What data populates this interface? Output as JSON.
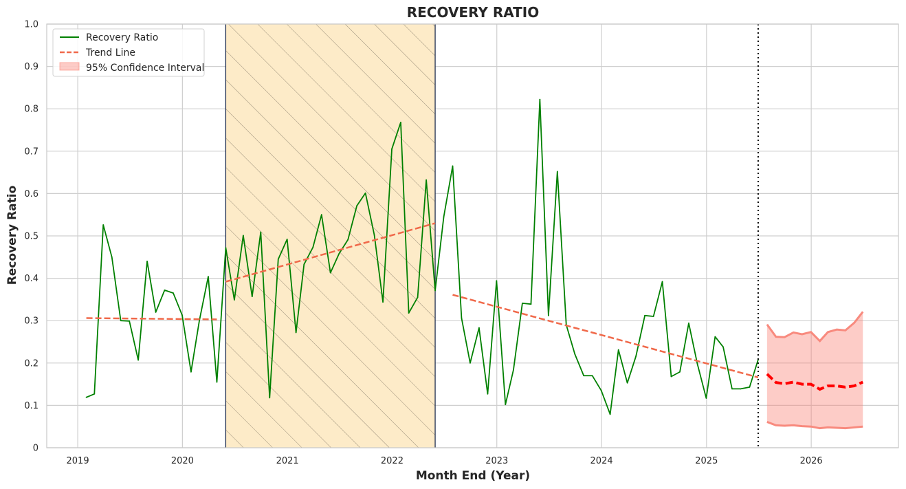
{
  "chart_data": {
    "type": "line",
    "title": "RECOVERY RATIO",
    "xlabel": "Month End (Year)",
    "ylabel": "Recovery Ratio",
    "xlim": [
      "2018-09-15",
      "2026-11-01"
    ],
    "ylim": [
      0,
      1
    ],
    "yticks": [
      "0",
      "0.1",
      "0.2",
      "0.3",
      "0.4",
      "0.5",
      "0.6",
      "0.7",
      "0.8",
      "0.9",
      "1.0"
    ],
    "xticks": [
      "2019",
      "2020",
      "2021",
      "2022",
      "2023",
      "2024",
      "2025",
      "2026"
    ],
    "grid": true,
    "legend_position": "top-left",
    "legend": [
      "Recovery Ratio",
      "Trend Line",
      "95% Confidence Interval"
    ],
    "colors": {
      "recovery": "#008000",
      "trend": "#f0694a",
      "forecast": "#ff0000",
      "ci_fill": "#fb8072",
      "ci_edge": "#f88a7e",
      "shade": "#fdebc8",
      "hatch": "#9a8e79",
      "shade_edge": "#1f2d4d",
      "grid": "#cfcfcf"
    },
    "shaded_region": {
      "start": "2020-05-31",
      "end": "2022-05-31",
      "hatched": true
    },
    "forecast_start_line": "2025-06-30",
    "series": [
      {
        "name": "Recovery Ratio",
        "style": "solid",
        "points": [
          [
            "2019-01-31",
            0.119
          ],
          [
            "2019-02-28",
            0.127
          ],
          [
            "2019-03-31",
            0.526
          ],
          [
            "2019-04-30",
            0.45
          ],
          [
            "2019-05-31",
            0.3
          ],
          [
            "2019-06-30",
            0.299
          ],
          [
            "2019-07-31",
            0.207
          ],
          [
            "2019-08-31",
            0.44
          ],
          [
            "2019-09-30",
            0.32
          ],
          [
            "2019-10-31",
            0.372
          ],
          [
            "2019-11-30",
            0.365
          ],
          [
            "2019-12-31",
            0.313
          ],
          [
            "2020-01-31",
            0.179
          ],
          [
            "2020-02-29",
            0.3
          ],
          [
            "2020-03-31",
            0.404
          ],
          [
            "2020-04-30",
            0.155
          ],
          [
            "2020-05-31",
            0.472
          ],
          [
            "2020-06-30",
            0.349
          ],
          [
            "2020-07-31",
            0.501
          ],
          [
            "2020-08-31",
            0.357
          ],
          [
            "2020-09-30",
            0.509
          ],
          [
            "2020-10-31",
            0.118
          ],
          [
            "2020-11-30",
            0.445
          ],
          [
            "2020-12-31",
            0.492
          ],
          [
            "2021-01-31",
            0.272
          ],
          [
            "2021-02-28",
            0.433
          ],
          [
            "2021-03-31",
            0.473
          ],
          [
            "2021-04-30",
            0.55
          ],
          [
            "2021-05-31",
            0.413
          ],
          [
            "2021-06-30",
            0.458
          ],
          [
            "2021-07-31",
            0.491
          ],
          [
            "2021-08-31",
            0.571
          ],
          [
            "2021-09-30",
            0.601
          ],
          [
            "2021-10-31",
            0.502
          ],
          [
            "2021-11-30",
            0.344
          ],
          [
            "2021-12-31",
            0.705
          ],
          [
            "2022-01-31",
            0.768
          ],
          [
            "2022-02-28",
            0.318
          ],
          [
            "2022-03-31",
            0.355
          ],
          [
            "2022-04-30",
            0.632
          ],
          [
            "2022-05-31",
            0.371
          ],
          [
            "2022-06-30",
            0.545
          ],
          [
            "2022-07-31",
            0.665
          ],
          [
            "2022-08-31",
            0.306
          ],
          [
            "2022-09-30",
            0.2
          ],
          [
            "2022-10-31",
            0.283
          ],
          [
            "2022-11-30",
            0.127
          ],
          [
            "2022-12-31",
            0.394
          ],
          [
            "2023-01-31",
            0.102
          ],
          [
            "2023-02-28",
            0.184
          ],
          [
            "2023-03-31",
            0.341
          ],
          [
            "2023-04-30",
            0.339
          ],
          [
            "2023-05-31",
            0.822
          ],
          [
            "2023-06-30",
            0.312
          ],
          [
            "2023-07-31",
            0.652
          ],
          [
            "2023-08-31",
            0.29
          ],
          [
            "2023-09-30",
            0.221
          ],
          [
            "2023-10-31",
            0.17
          ],
          [
            "2023-11-30",
            0.17
          ],
          [
            "2023-12-31",
            0.135
          ],
          [
            "2024-01-31",
            0.079
          ],
          [
            "2024-02-29",
            0.231
          ],
          [
            "2024-03-31",
            0.153
          ],
          [
            "2024-04-30",
            0.216
          ],
          [
            "2024-05-31",
            0.312
          ],
          [
            "2024-06-30",
            0.31
          ],
          [
            "2024-07-31",
            0.392
          ],
          [
            "2024-08-31",
            0.168
          ],
          [
            "2024-09-30",
            0.179
          ],
          [
            "2024-10-31",
            0.294
          ],
          [
            "2024-11-30",
            0.198
          ],
          [
            "2024-12-31",
            0.117
          ],
          [
            "2025-01-31",
            0.262
          ],
          [
            "2025-02-28",
            0.238
          ],
          [
            "2025-03-31",
            0.139
          ],
          [
            "2025-04-30",
            0.139
          ],
          [
            "2025-05-31",
            0.143
          ],
          [
            "2025-06-30",
            0.208
          ]
        ]
      },
      {
        "name": "Trend Line",
        "style": "dashed",
        "segments": [
          [
            [
              "2019-01-31",
              0.306
            ],
            [
              "2020-04-30",
              0.303
            ]
          ],
          [
            [
              "2020-05-31",
              0.392
            ],
            [
              "2022-05-31",
              0.53
            ]
          ],
          [
            [
              "2022-07-31",
              0.361
            ],
            [
              "2025-06-30",
              0.166
            ]
          ]
        ]
      },
      {
        "style": "dashed-bold",
        "points": [
          [
            "2025-07-31",
            0.174
          ],
          [
            "2025-08-31",
            0.154
          ],
          [
            "2025-09-30",
            0.151
          ],
          [
            "2025-10-31",
            0.155
          ],
          [
            "2025-11-30",
            0.15
          ],
          [
            "2025-12-31",
            0.15
          ],
          [
            "2026-01-31",
            0.138
          ],
          [
            "2026-02-28",
            0.146
          ],
          [
            "2026-03-31",
            0.146
          ],
          [
            "2026-04-30",
            0.143
          ],
          [
            "2026-05-31",
            0.146
          ],
          [
            "2026-06-30",
            0.155
          ]
        ]
      },
      {
        "name": "95% Confidence Interval",
        "style": "band",
        "x": [
          "2025-07-31",
          "2025-08-31",
          "2025-09-30",
          "2025-10-31",
          "2025-11-30",
          "2025-12-31",
          "2026-01-31",
          "2026-02-28",
          "2026-03-31",
          "2026-04-30",
          "2026-05-31",
          "2026-06-30"
        ],
        "upper": [
          0.291,
          0.262,
          0.261,
          0.272,
          0.268,
          0.273,
          0.252,
          0.273,
          0.279,
          0.277,
          0.295,
          0.321
        ],
        "lower": [
          0.061,
          0.053,
          0.052,
          0.053,
          0.051,
          0.05,
          0.046,
          0.048,
          0.047,
          0.046,
          0.048,
          0.05
        ]
      }
    ]
  }
}
